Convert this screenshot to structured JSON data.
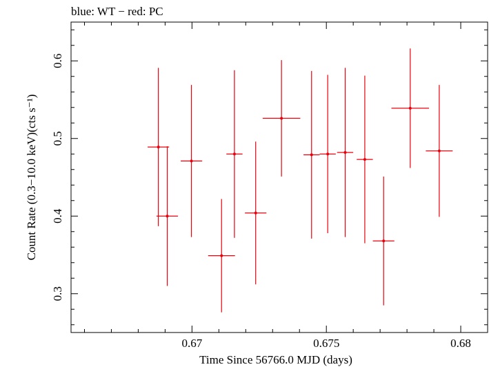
{
  "header_text": "blue: WT − red: PC",
  "chart_data": {
    "type": "scatter",
    "title": "blue: WT − red: PC",
    "xlabel": "Time Since 56766.0 MJD (days)",
    "ylabel": "Count Rate (0.3−10.0 keV)(cts s⁻¹)",
    "xlim": [
      0.6655,
      0.681
    ],
    "ylim": [
      0.25,
      0.65
    ],
    "x_ticks": [
      0.67,
      0.675,
      0.68
    ],
    "x_tick_labels": [
      "0.67",
      "0.675",
      "0.68"
    ],
    "y_ticks": [
      0.3,
      0.4,
      0.5,
      0.6
    ],
    "y_tick_labels": [
      "0.3",
      "0.4",
      "0.5",
      "0.6"
    ],
    "grid": false,
    "series": [
      {
        "color": "#e8000b",
        "points": [
          {
            "x": 0.66875,
            "xerr": 0.0004,
            "y": 0.489,
            "yerr": 0.102
          },
          {
            "x": 0.66908,
            "xerr": 0.0004,
            "y": 0.4,
            "yerr": 0.09
          },
          {
            "x": 0.66998,
            "xerr": 0.0004,
            "y": 0.471,
            "yerr": 0.098
          },
          {
            "x": 0.6711,
            "xerr": 0.0005,
            "y": 0.349,
            "yerr": 0.073
          },
          {
            "x": 0.67158,
            "xerr": 0.0003,
            "y": 0.48,
            "yerr": 0.108
          },
          {
            "x": 0.67237,
            "xerr": 0.0004,
            "y": 0.404,
            "yerr": 0.092
          },
          {
            "x": 0.67333,
            "xerr": 0.0007,
            "y": 0.526,
            "yerr": 0.075
          },
          {
            "x": 0.67445,
            "xerr": 0.0003,
            "y": 0.479,
            "yerr": 0.108
          },
          {
            "x": 0.67505,
            "xerr": 0.0003,
            "y": 0.48,
            "yerr": 0.102
          },
          {
            "x": 0.6757,
            "xerr": 0.0003,
            "y": 0.482,
            "yerr": 0.109
          },
          {
            "x": 0.67643,
            "xerr": 0.0003,
            "y": 0.473,
            "yerr": 0.108
          },
          {
            "x": 0.67713,
            "xerr": 0.0004,
            "y": 0.368,
            "yerr": 0.083
          },
          {
            "x": 0.67812,
            "xerr": 0.0007,
            "y": 0.539,
            "yerr": 0.077
          },
          {
            "x": 0.6792,
            "xerr": 0.0005,
            "y": 0.484,
            "yerr": 0.085
          }
        ]
      }
    ]
  }
}
